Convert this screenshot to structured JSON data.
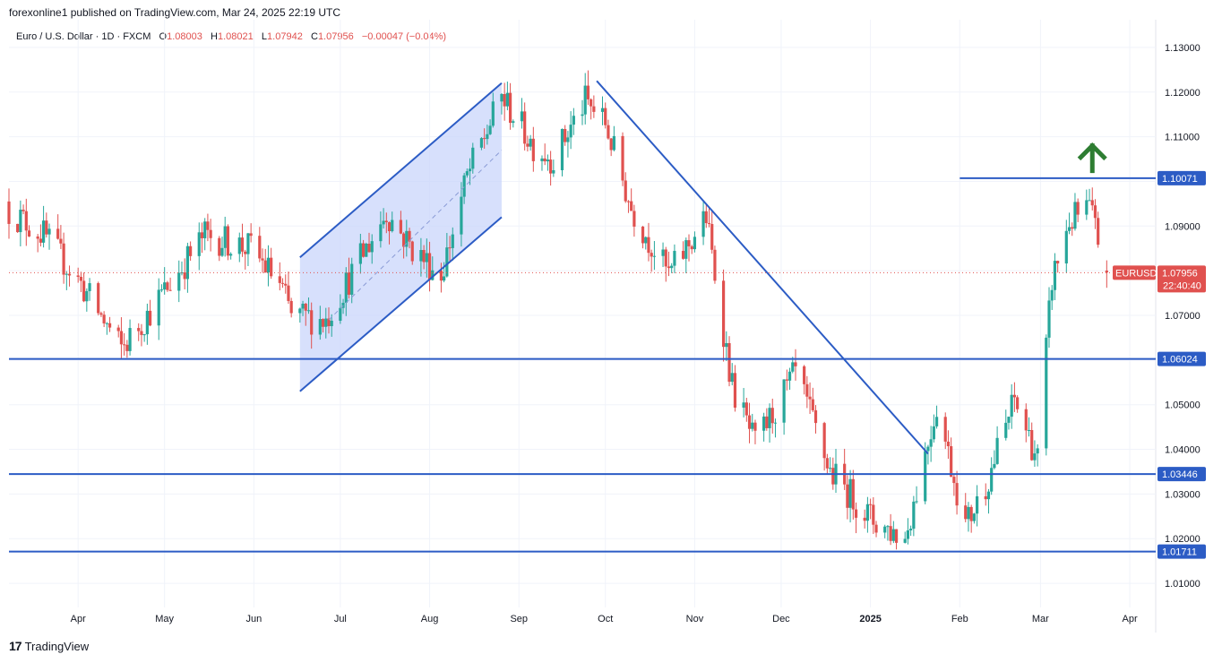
{
  "header": {
    "publisher": "forexonline1 published on TradingView.com, Mar 24, 2025 22:19 UTC"
  },
  "legend": {
    "symbol": "Euro / U.S. Dollar · 1D · FXCM",
    "open_label": "O",
    "open": "1.08003",
    "high_label": "H",
    "high": "1.08021",
    "low_label": "L",
    "low": "1.07942",
    "close_label": "C",
    "close": "1.07956",
    "change": "−0.00047 (−0.04%)"
  },
  "footer": {
    "brand": "TradingView",
    "logo_glyph": "17"
  },
  "colors": {
    "up": "#26a69a",
    "down": "#e0514f",
    "drawing": "#2c5cc5",
    "channel_fill": "#c9d6fb",
    "arrow": "#2e7d32",
    "grid": "#f0f3fa"
  },
  "chart_data": {
    "type": "candlestick",
    "symbol": "EURUSD",
    "timeframe": "1D",
    "ylim": [
      1.005,
      1.135
    ],
    "y_ticks": [
      "1.13000",
      "1.12000",
      "1.11000",
      "1.10000",
      "1.09000",
      "1.08000",
      "1.07000",
      "1.06000",
      "1.05000",
      "1.04000",
      "1.03000",
      "1.02000",
      "1.01000"
    ],
    "x_ticks": [
      {
        "label": "Apr",
        "date": "2024-04-01"
      },
      {
        "label": "May",
        "date": "2024-05-01"
      },
      {
        "label": "Jun",
        "date": "2024-06-01"
      },
      {
        "label": "Jul",
        "date": "2024-07-01"
      },
      {
        "label": "Aug",
        "date": "2024-08-01"
      },
      {
        "label": "Sep",
        "date": "2024-09-01"
      },
      {
        "label": "Oct",
        "date": "2024-10-01"
      },
      {
        "label": "Nov",
        "date": "2024-11-01"
      },
      {
        "label": "Dec",
        "date": "2024-12-01"
      },
      {
        "label": "2025",
        "date": "2025-01-01",
        "bold": true
      },
      {
        "label": "Feb",
        "date": "2025-02-01"
      },
      {
        "label": "Mar",
        "date": "2025-03-01"
      },
      {
        "label": "Apr",
        "date": "2025-04-01"
      }
    ],
    "close_path": [
      [
        "2024-03-08",
        1.0935
      ],
      [
        "2024-03-20",
        1.088
      ],
      [
        "2024-04-02",
        1.077
      ],
      [
        "2024-04-16",
        1.0625
      ],
      [
        "2024-04-25",
        1.07
      ],
      [
        "2024-05-15",
        1.088
      ],
      [
        "2024-05-31",
        1.085
      ],
      [
        "2024-06-10",
        1.077
      ],
      [
        "2024-06-14",
        1.07
      ],
      [
        "2024-06-26",
        1.069
      ],
      [
        "2024-07-17",
        1.093
      ],
      [
        "2024-07-26",
        1.085
      ],
      [
        "2024-08-05",
        1.079
      ],
      [
        "2024-08-14",
        1.101
      ],
      [
        "2024-08-26",
        1.119
      ],
      [
        "2024-09-06",
        1.108
      ],
      [
        "2024-09-13",
        1.105
      ],
      [
        "2024-09-24",
        1.118
      ],
      [
        "2024-10-01",
        1.113
      ],
      [
        "2024-10-10",
        1.094
      ],
      [
        "2024-10-23",
        1.079
      ],
      [
        "2024-11-05",
        1.092
      ],
      [
        "2024-11-14",
        1.054
      ],
      [
        "2024-11-22",
        1.041
      ],
      [
        "2024-12-06",
        1.057
      ],
      [
        "2024-12-18",
        1.035
      ],
      [
        "2025-01-02",
        1.024
      ],
      [
        "2025-01-13",
        1.02
      ],
      [
        "2025-01-24",
        1.05
      ],
      [
        "2025-02-03",
        1.023
      ],
      [
        "2025-02-10",
        1.032
      ],
      [
        "2025-02-20",
        1.051
      ],
      [
        "2025-02-28",
        1.038
      ],
      [
        "2025-03-05",
        1.078
      ],
      [
        "2025-03-11",
        1.091
      ],
      [
        "2025-03-18",
        1.094
      ],
      [
        "2025-03-24",
        1.0796
      ]
    ],
    "horizontal_levels": [
      {
        "value": 1.10071,
        "label": "1.10071",
        "from": "2025-02-01"
      },
      {
        "value": 1.06024,
        "label": "1.06024"
      },
      {
        "value": 1.03446,
        "label": "1.03446"
      },
      {
        "value": 1.01711,
        "label": "1.01711"
      }
    ],
    "current_price": {
      "label": "1.07956",
      "value": 1.07956,
      "countdown": "22:40:40",
      "symbol_tag": "EURUSD"
    },
    "ascending_channel": {
      "upper": [
        [
          "2024-06-17",
          1.083
        ],
        [
          "2024-08-26",
          1.122
        ]
      ],
      "lower": [
        [
          "2024-06-17",
          1.053
        ],
        [
          "2024-08-26",
          1.092
        ]
      ],
      "midline": [
        [
          "2024-06-27",
          1.069
        ],
        [
          "2024-08-26",
          1.107
        ]
      ]
    },
    "descending_trendline": [
      [
        "2024-09-28",
        1.1225
      ],
      [
        "2025-01-21",
        1.039
      ]
    ],
    "annotation": {
      "type": "arrow-up",
      "at": [
        "2025-03-19",
        1.108
      ]
    }
  }
}
